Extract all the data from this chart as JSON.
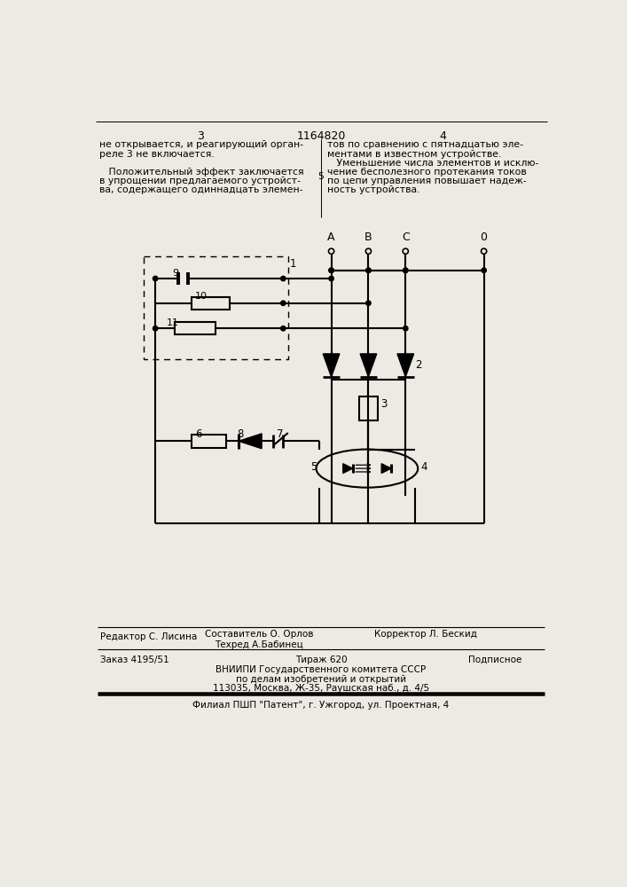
{
  "page_text_top_left": [
    "не открывается, и реагирующий орган-",
    "реле 3 не включается.",
    "",
    "   Положительный эффект заключается",
    "в упрощении предлагаемого устройст-",
    "ва, содержащего одиннадцать элемен-"
  ],
  "page_text_top_right": [
    "тов по сравнению с пятнадцатью эле-",
    "ментами в известном устройстве.",
    "   Уменьшение числа элементов и исклю-",
    "чение бесполезного протекания токов",
    "по цепи управления повышает надеж-",
    "ность устройства."
  ],
  "page_number_left": "3",
  "page_number_center": "1164820",
  "page_number_right": "4",
  "line5_marker": "5",
  "bottom_editor": "Редактор С. Лисина",
  "bottom_compiler": "Составитель О. Орлов",
  "bottom_techred": "Техред А.Бабинец",
  "bottom_corrector": "Корректор Л. Бескид",
  "bottom_order": "Заказ 4195/51",
  "bottom_tirazh": "Тираж 620",
  "bottom_podp": "Подписное",
  "bottom_vniipи": "ВНИИПИ Государственного комитета СССР",
  "bottom_dela": "по делам изобретений и открытий",
  "bottom_addr": "113035, Москва, Ж-35, Раушская наб., д. 4/5",
  "bottom_filial": "Филиал ПШП \"Патент\", г. Ужгород, ул. Проектная, 4",
  "bg_color": "#ede9e3"
}
